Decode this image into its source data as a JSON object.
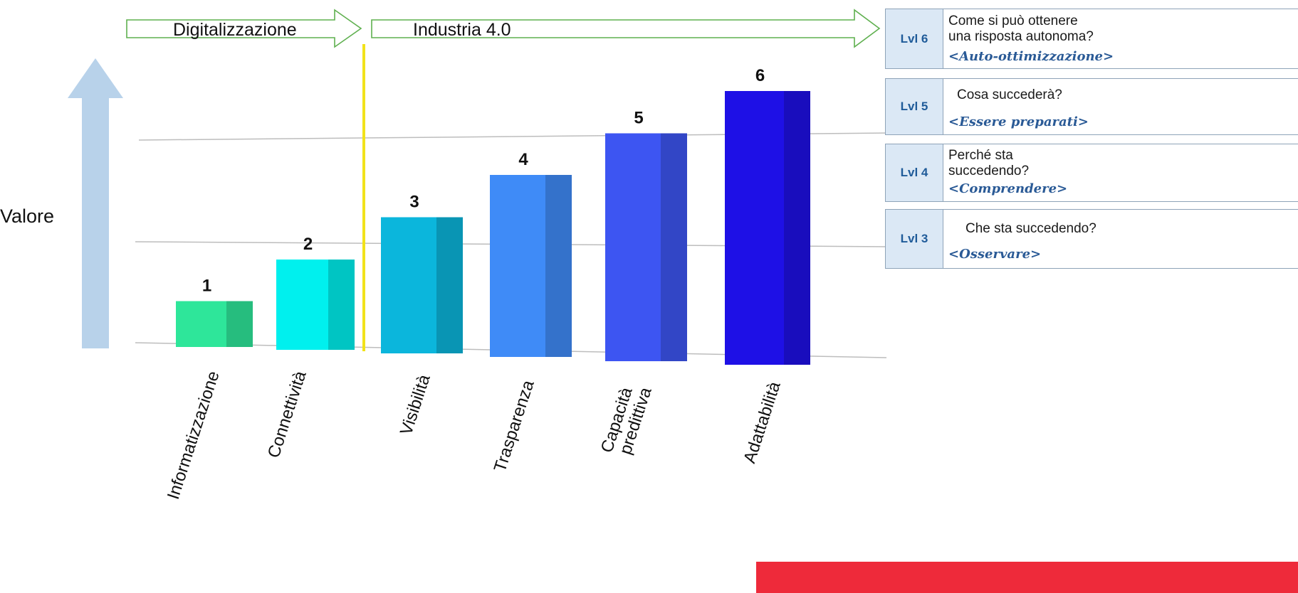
{
  "chart_data": {
    "type": "bar",
    "ylabel": "Valore",
    "categories": [
      "Informatizzazione",
      "Connettività",
      "Visibilità",
      "Trasparenza",
      "Capacità predittiva",
      "Adattabilità"
    ],
    "values": [
      1,
      2,
      3,
      4,
      5,
      6
    ],
    "data_labels": [
      "1",
      "2",
      "3",
      "4",
      "5",
      "6"
    ],
    "bar_colors": [
      "#2ee69a",
      "#00f0ee",
      "#0bb6dc",
      "#3f8bf7",
      "#3d55f2",
      "#1e10e6"
    ],
    "phases": [
      {
        "label": "Digitalizzazione",
        "categories": [
          "Informatizzazione",
          "Connettività"
        ]
      },
      {
        "label": "Industria 4.0",
        "categories": [
          "Visibilità",
          "Trasparenza",
          "Capacità predittiva",
          "Adattabilità"
        ]
      }
    ],
    "divider_color": "#f2e21a",
    "arrow_color": "#b8d2ea"
  },
  "levels": [
    {
      "tag": "Lvl 6",
      "question": "Come si può ottenere una risposta autonoma?",
      "question_lines": [
        "Come si può ottenere",
        "una risposta autonoma?"
      ],
      "theme": "<Auto-ottimizzazione>"
    },
    {
      "tag": "Lvl 5",
      "question": "Cosa succederà?",
      "question_lines": [
        "Cosa succederà?"
      ],
      "theme": "<Essere preparati>"
    },
    {
      "tag": "Lvl 4",
      "question": "Perché sta succedendo?",
      "question_lines": [
        "Perché sta",
        "succedendo?"
      ],
      "theme": "<Comprendere>"
    },
    {
      "tag": "Lvl 3",
      "question": "Che sta succedendo?",
      "question_lines": [
        "Che sta succedendo?"
      ],
      "theme": "<Osservare>"
    }
  ],
  "accent_color": "#ee2a3a"
}
